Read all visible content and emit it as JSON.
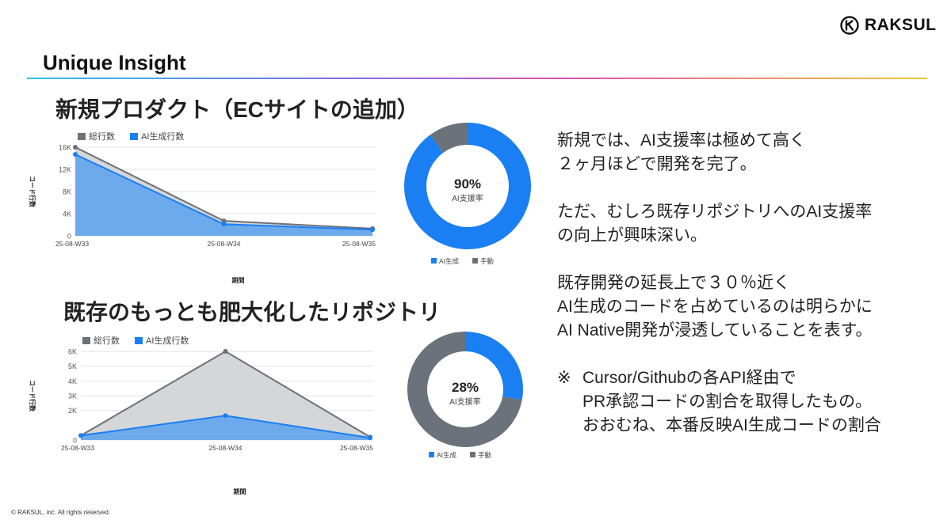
{
  "brand": {
    "name": "RAKSUL",
    "colors": {
      "ai": "#1a7ff2",
      "total": "#6b727c",
      "total_fill": "#cfd1d4",
      "ai_fill": "#5aa2ee"
    }
  },
  "page_title": "Unique Insight",
  "sections": [
    {
      "title": "新規プロダクト（ECサイトの追加）"
    },
    {
      "title": "既存のもっとも肥大化したリポジトリ"
    }
  ],
  "chart_data": [
    {
      "type": "area",
      "categories": [
        "25-08-W33",
        "25-08-W34",
        "25-08-W35"
      ],
      "series": [
        {
          "name": "総行数",
          "values": [
            16000,
            2700,
            1300
          ]
        },
        {
          "name": "AI生成行数",
          "values": [
            14700,
            2100,
            1100
          ]
        }
      ],
      "xlabel": "期間",
      "ylabel": "コード行数",
      "ylim": [
        0,
        16000
      ],
      "yticks": [
        0,
        4000,
        8000,
        12000,
        16000
      ],
      "ytick_labels": [
        "0",
        "4K",
        "8K",
        "12K",
        "16K"
      ],
      "legend": "top-left",
      "grid": true
    },
    {
      "type": "pie",
      "categories": [
        "AI生成",
        "手動"
      ],
      "values": [
        90,
        10
      ],
      "center_value": "90%",
      "center_label": "AI支援率",
      "legend": "bottom"
    },
    {
      "type": "area",
      "categories": [
        "25-08-W33",
        "25-08-W34",
        "25-08-W35"
      ],
      "series": [
        {
          "name": "総行数",
          "values": [
            300,
            6000,
            200
          ]
        },
        {
          "name": "AI生成行数",
          "values": [
            300,
            1650,
            150
          ]
        }
      ],
      "xlabel": "期間",
      "ylabel": "コード行数",
      "ylim": [
        0,
        6000
      ],
      "yticks": [
        0,
        2000,
        3000,
        4000,
        5000,
        6000
      ],
      "ytick_labels": [
        "0",
        "2K",
        "3K",
        "4K",
        "5K",
        "6K"
      ],
      "legend": "top-left",
      "grid": true
    },
    {
      "type": "pie",
      "categories": [
        "AI生成",
        "手動"
      ],
      "values": [
        28,
        72
      ],
      "center_value": "28%",
      "center_label": "AI支援率",
      "legend": "bottom"
    }
  ],
  "description": {
    "p1": [
      "新規では、AI支援率は極めて高く",
      "２ヶ月ほどで開発を完了。"
    ],
    "p2": [
      "ただ、むしろ既存リポジトリへのAI支援率",
      "の向上が興味深い。"
    ],
    "p3": [
      "既存開発の延長上で３０％近く",
      "AI生成のコードを占めているのは明らかに",
      "AI Native開発が浸透していることを表す。"
    ],
    "note_mark": "※",
    "note": [
      "Cursor/Githubの各API経由で",
      "PR承認コードの割合を取得したもの。",
      "おおむね、本番反映AI生成コードの割合"
    ]
  },
  "footer": {
    "copyright": "© RAKSUL, inc. All rights reserved."
  }
}
